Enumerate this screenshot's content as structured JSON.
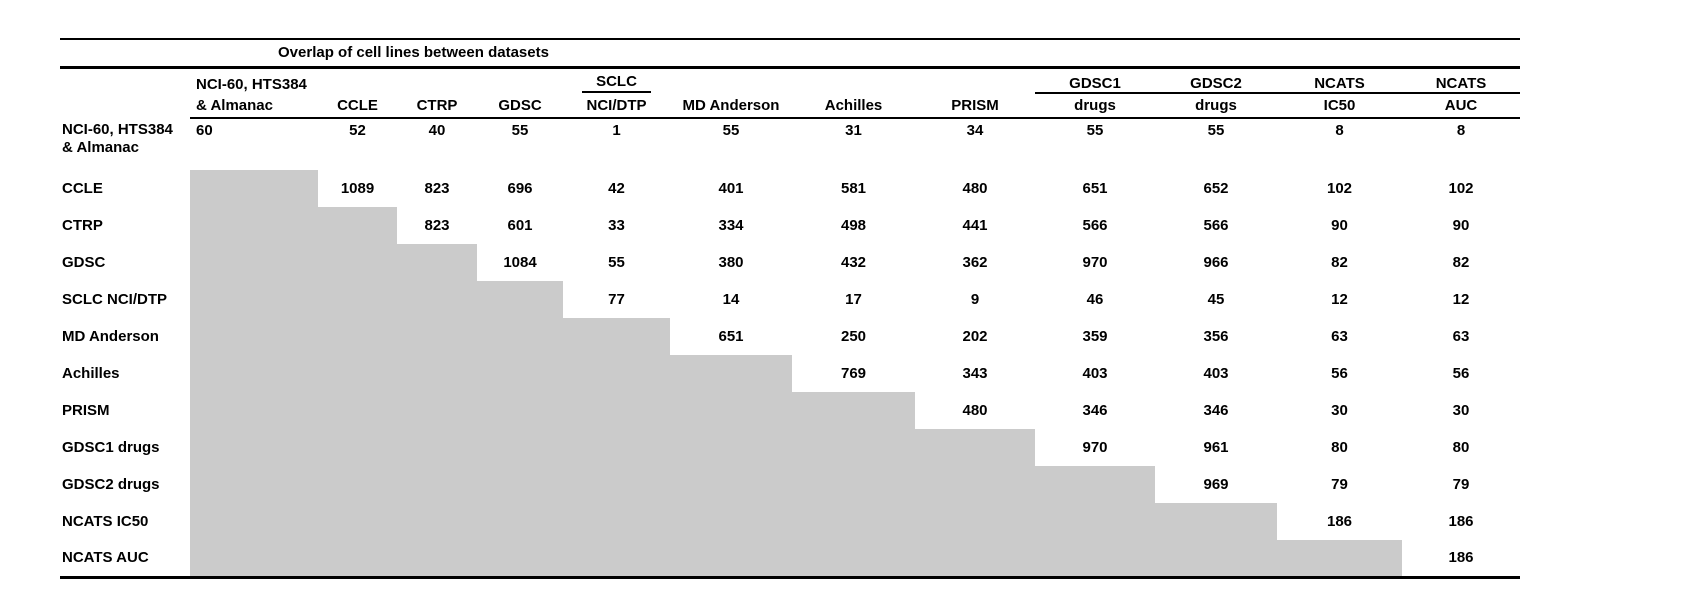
{
  "page": {
    "background": "#ffffff"
  },
  "colors": {
    "lower_triangle_fill": "#cbcbcb",
    "rule_color": "#000000",
    "text_color": "#000000"
  },
  "table": {
    "title": "Overlap of cell lines between datasets",
    "columns": [
      {
        "line1": "NCI-60, HTS384",
        "line2": "& Almanac",
        "underline": "none",
        "align": "left"
      },
      {
        "line1": "",
        "line2": "CCLE",
        "underline": "none",
        "align": "center"
      },
      {
        "line1": "",
        "line2": "CTRP",
        "underline": "none",
        "align": "center"
      },
      {
        "line1": "",
        "line2": "GDSC",
        "underline": "none",
        "align": "center"
      },
      {
        "line1": "SCLC",
        "line2": "NCI/DTP",
        "underline": "short",
        "align": "center"
      },
      {
        "line1": "",
        "line2": "MD Anderson",
        "underline": "none",
        "align": "center"
      },
      {
        "line1": "",
        "line2": "Achilles",
        "underline": "none",
        "align": "center"
      },
      {
        "line1": "",
        "line2": "PRISM",
        "underline": "none",
        "align": "center"
      },
      {
        "line1": "GDSC1",
        "line2": "drugs",
        "underline": "cell",
        "align": "center"
      },
      {
        "line1": "GDSC2",
        "line2": "drugs",
        "underline": "cell",
        "align": "center"
      },
      {
        "line1": "NCATS",
        "line2": "IC50",
        "underline": "cell",
        "align": "center"
      },
      {
        "line1": "NCATS",
        "line2": "AUC",
        "underline": "cell",
        "align": "center"
      }
    ],
    "rows": [
      {
        "label": "NCI-60, HTS384 & Almanac",
        "values": [
          60,
          52,
          40,
          55,
          1,
          55,
          31,
          34,
          55,
          55,
          8,
          8
        ]
      },
      {
        "label": "CCLE",
        "values": [
          null,
          1089,
          823,
          696,
          42,
          401,
          581,
          480,
          651,
          652,
          102,
          102
        ]
      },
      {
        "label": "CTRP",
        "values": [
          null,
          null,
          823,
          601,
          33,
          334,
          498,
          441,
          566,
          566,
          90,
          90
        ]
      },
      {
        "label": "GDSC",
        "values": [
          null,
          null,
          null,
          1084,
          55,
          380,
          432,
          362,
          970,
          966,
          82,
          82
        ]
      },
      {
        "label": "SCLC NCI/DTP",
        "values": [
          null,
          null,
          null,
          null,
          77,
          14,
          17,
          9,
          46,
          45,
          12,
          12
        ]
      },
      {
        "label": "MD Anderson",
        "values": [
          null,
          null,
          null,
          null,
          null,
          651,
          250,
          202,
          359,
          356,
          63,
          63
        ]
      },
      {
        "label": "Achilles",
        "values": [
          null,
          null,
          null,
          null,
          null,
          null,
          769,
          343,
          403,
          403,
          56,
          56
        ]
      },
      {
        "label": "PRISM",
        "values": [
          null,
          null,
          null,
          null,
          null,
          null,
          null,
          480,
          346,
          346,
          30,
          30
        ]
      },
      {
        "label": "GDSC1 drugs",
        "values": [
          null,
          null,
          null,
          null,
          null,
          null,
          null,
          null,
          970,
          961,
          80,
          80
        ]
      },
      {
        "label": "GDSC2 drugs",
        "values": [
          null,
          null,
          null,
          null,
          null,
          null,
          null,
          null,
          null,
          969,
          79,
          79
        ]
      },
      {
        "label": "NCATS IC50",
        "values": [
          null,
          null,
          null,
          null,
          null,
          null,
          null,
          null,
          null,
          null,
          186,
          186
        ]
      },
      {
        "label": "NCATS AUC",
        "values": [
          null,
          null,
          null,
          null,
          null,
          null,
          null,
          null,
          null,
          null,
          null,
          186
        ]
      }
    ]
  }
}
